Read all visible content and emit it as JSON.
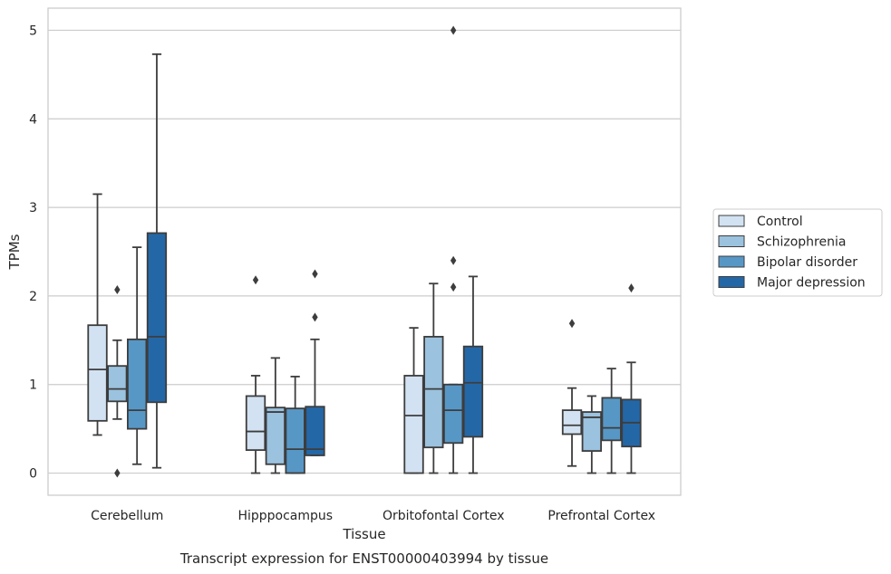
{
  "chart_data": {
    "type": "box",
    "title": "Transcript expression for ENST00000403994 by tissue",
    "xlabel": "Tissue",
    "ylabel": "TPMs",
    "ylim": [
      -0.25,
      5.25
    ],
    "yticks": [
      0,
      1,
      2,
      3,
      4,
      5
    ],
    "grid": "horizontal",
    "legend_position": "center-right, outside",
    "categories": [
      "Cerebellum",
      "Hipppocampus",
      "Orbitofontal Cortex",
      "Prefrontal Cortex"
    ],
    "series": [
      {
        "name": "Control",
        "color": "#d3e2f2",
        "boxes": [
          {
            "whislo": 0.43,
            "q1": 0.59,
            "med": 1.17,
            "q3": 1.67,
            "whishi": 3.15,
            "fliers": []
          },
          {
            "whislo": 0.0,
            "q1": 0.26,
            "med": 0.47,
            "q3": 0.87,
            "whishi": 1.1,
            "fliers": [
              2.18
            ]
          },
          {
            "whislo": 0.0,
            "q1": 0.0,
            "med": 0.65,
            "q3": 1.1,
            "whishi": 1.64,
            "fliers": []
          },
          {
            "whislo": 0.08,
            "q1": 0.44,
            "med": 0.54,
            "q3": 0.71,
            "whishi": 0.96,
            "fliers": [
              1.69
            ]
          }
        ]
      },
      {
        "name": "Schizophrenia",
        "color": "#9bc2de",
        "boxes": [
          {
            "whislo": 0.61,
            "q1": 0.81,
            "med": 0.95,
            "q3": 1.21,
            "whishi": 1.5,
            "fliers": [
              2.07,
              0.0
            ]
          },
          {
            "whislo": 0.0,
            "q1": 0.1,
            "med": 0.69,
            "q3": 0.74,
            "whishi": 1.3,
            "fliers": []
          },
          {
            "whislo": 0.0,
            "q1": 0.29,
            "med": 0.95,
            "q3": 1.54,
            "whishi": 2.14,
            "fliers": []
          },
          {
            "whislo": 0.0,
            "q1": 0.25,
            "med": 0.63,
            "q3": 0.69,
            "whishi": 0.87,
            "fliers": []
          }
        ]
      },
      {
        "name": "Bipolar disorder",
        "color": "#5797c6",
        "boxes": [
          {
            "whislo": 0.1,
            "q1": 0.5,
            "med": 0.71,
            "q3": 1.51,
            "whishi": 2.55,
            "fliers": []
          },
          {
            "whislo": 0.0,
            "q1": 0.0,
            "med": 0.27,
            "q3": 0.73,
            "whishi": 1.09,
            "fliers": []
          },
          {
            "whislo": 0.0,
            "q1": 0.34,
            "med": 0.71,
            "q3": 1.0,
            "whishi": 1.0,
            "fliers": [
              5.0,
              2.4,
              2.1
            ]
          },
          {
            "whislo": 0.0,
            "q1": 0.37,
            "med": 0.51,
            "q3": 0.85,
            "whishi": 1.18,
            "fliers": []
          }
        ]
      },
      {
        "name": "Major depression",
        "color": "#2467a7",
        "boxes": [
          {
            "whislo": 0.06,
            "q1": 0.8,
            "med": 1.54,
            "q3": 2.71,
            "whishi": 4.73,
            "fliers": []
          },
          {
            "whislo": 0.2,
            "q1": 0.2,
            "med": 0.27,
            "q3": 0.75,
            "whishi": 1.51,
            "fliers": [
              2.25,
              1.76
            ]
          },
          {
            "whislo": 0.0,
            "q1": 0.41,
            "med": 1.02,
            "q3": 1.43,
            "whishi": 2.22,
            "fliers": []
          },
          {
            "whislo": 0.0,
            "q1": 0.3,
            "med": 0.57,
            "q3": 0.83,
            "whishi": 1.25,
            "fliers": [
              2.09
            ]
          }
        ]
      }
    ]
  }
}
